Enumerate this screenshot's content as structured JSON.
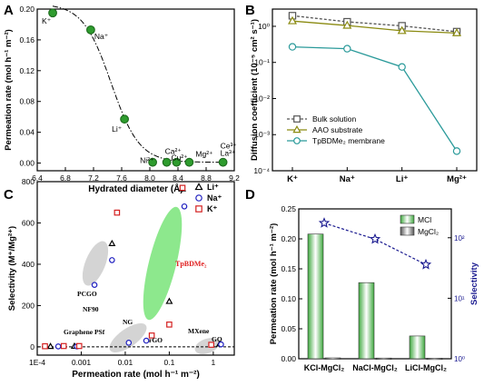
{
  "panels": {
    "A": "A",
    "B": "B",
    "C": "C",
    "D": "D"
  },
  "chart_data": [
    {
      "panel": "A",
      "type": "scatter",
      "xlabel": "Hydrated diameter (Å)",
      "ylabel": "Permeation rate (mol h⁻¹ m⁻²)",
      "xlim": [
        6.4,
        9.2
      ],
      "ylim": [
        -0.01,
        0.2
      ],
      "xticks": [
        "6.4",
        "6.8",
        "7.2",
        "7.6",
        "8.0",
        "8.4",
        "8.8",
        "9.2"
      ],
      "yticks": [
        "0.00",
        "0.04",
        "0.08",
        "0.12",
        "0.16",
        "0.20"
      ],
      "points": [
        {
          "label": "K⁺",
          "x": 6.62,
          "y": 0.195
        },
        {
          "label": "Na⁺",
          "x": 7.16,
          "y": 0.173
        },
        {
          "label": "Li⁺",
          "x": 7.64,
          "y": 0.057
        },
        {
          "label": "Ni²⁺",
          "x": 8.04,
          "y": 0.001
        },
        {
          "label": "Ca²⁺",
          "x": 8.24,
          "y": 0.001
        },
        {
          "label": "Cu²⁺",
          "x": 8.38,
          "y": 0.001
        },
        {
          "label": "Mg²⁺",
          "x": 8.56,
          "y": 0.001
        },
        {
          "label": "Ce³⁺ La³⁺",
          "x": 9.04,
          "y": 0.001
        }
      ],
      "color": "#2e9c2e",
      "trend": "dash-dot"
    },
    {
      "panel": "B",
      "type": "line",
      "ylabel": "Diffusion coefficient (10⁻⁵ cm² s⁻¹)",
      "yscale": "log",
      "ylim": [
        0.0001,
        3
      ],
      "yticks": [
        "10⁰",
        "10⁻¹",
        "10⁻²",
        "10⁻³",
        "10⁻⁴"
      ],
      "categories": [
        "K⁺",
        "Na⁺",
        "Li⁺",
        "Mg²⁺"
      ],
      "series": [
        {
          "name": "Bulk solution",
          "marker": "square",
          "color": "#555555",
          "dash": true,
          "values": [
            1.96,
            1.33,
            1.03,
            0.71
          ]
        },
        {
          "name": "AAO substrate",
          "marker": "triangle",
          "color": "#8a8a10",
          "dash": false,
          "values": [
            1.4,
            1.05,
            0.75,
            0.65
          ]
        },
        {
          "name": "TpBDMe₂ membrane",
          "marker": "circle",
          "color": "#2a9a9a",
          "dash": false,
          "values": [
            0.27,
            0.24,
            0.075,
            0.00035
          ]
        }
      ],
      "legend_position": "lower-left"
    },
    {
      "panel": "C",
      "type": "scatter",
      "xlabel": "Permeation rate (mol h⁻¹ m⁻²)",
      "ylabel": "Selectivity (M⁺/Mg²⁺)",
      "xscale": "log",
      "xlim": [
        0.0001,
        3
      ],
      "ylim": [
        -40,
        800
      ],
      "xticks": [
        "1E-4",
        "0.001",
        "0.01",
        "0.1",
        "1"
      ],
      "yticks": [
        "0",
        "200",
        "400",
        "600",
        "800"
      ],
      "series": [
        {
          "name": "Li⁺",
          "marker": "triangle",
          "color": "#000000",
          "points": [
            [
              0.0002,
              2
            ],
            [
              0.0007,
              3
            ],
            [
              0.005,
              500
            ],
            [
              0.1,
              220
            ],
            [
              0.2,
              765
            ],
            [
              1.4,
              14
            ]
          ]
        },
        {
          "name": "Na⁺",
          "marker": "circle",
          "color": "#2020c0",
          "points": [
            [
              0.0003,
              2
            ],
            [
              0.0008,
              2
            ],
            [
              0.002,
              300
            ],
            [
              0.005,
              420
            ],
            [
              0.012,
              20
            ],
            [
              0.03,
              30
            ],
            [
              0.22,
              680
            ],
            [
              1.5,
              12
            ]
          ]
        },
        {
          "name": "K⁺",
          "marker": "square",
          "color": "#d42020",
          "points": [
            [
              0.00015,
              3
            ],
            [
              0.0004,
              4
            ],
            [
              0.0009,
              4
            ],
            [
              0.0065,
              650
            ],
            [
              0.04,
              55
            ],
            [
              0.1,
              108
            ],
            [
              0.2,
              770
            ],
            [
              0.9,
              10
            ]
          ]
        }
      ],
      "annotations": [
        "PCGO",
        "NF90",
        "Graphene PSf",
        "NG",
        "rGO",
        "MXene",
        "GO",
        "TpBDMe₂"
      ],
      "legend_position": "top-right"
    },
    {
      "panel": "D",
      "type": "bar",
      "categories": [
        "KCl-MgCl₂",
        "NaCl-MgCl₂",
        "LiCl-MgCl₂"
      ],
      "ylabel": "Permeation rate (mol h⁻¹ m⁻²)",
      "ylim": [
        0,
        0.25
      ],
      "yticks": [
        "0.00",
        "0.05",
        "0.10",
        "0.15",
        "0.20",
        "0.25"
      ],
      "series": [
        {
          "name": "MCl",
          "color": "#3ea83e",
          "values": [
            0.208,
            0.127,
            0.038
          ]
        },
        {
          "name": "MgCl₂",
          "color": "#555555",
          "values": [
            0.0015,
            0.0012,
            0.001
          ]
        }
      ],
      "y2label": "Selectivity",
      "y2scale": "log",
      "y2lim": [
        1,
        300
      ],
      "y2ticks": [
        "10⁰",
        "10¹",
        "10²"
      ],
      "y2_series": {
        "name": "Selectivity",
        "color": "#1a1a90",
        "marker": "star",
        "values": [
          175,
          95,
          36
        ]
      },
      "legend_position": "top-right"
    }
  ]
}
